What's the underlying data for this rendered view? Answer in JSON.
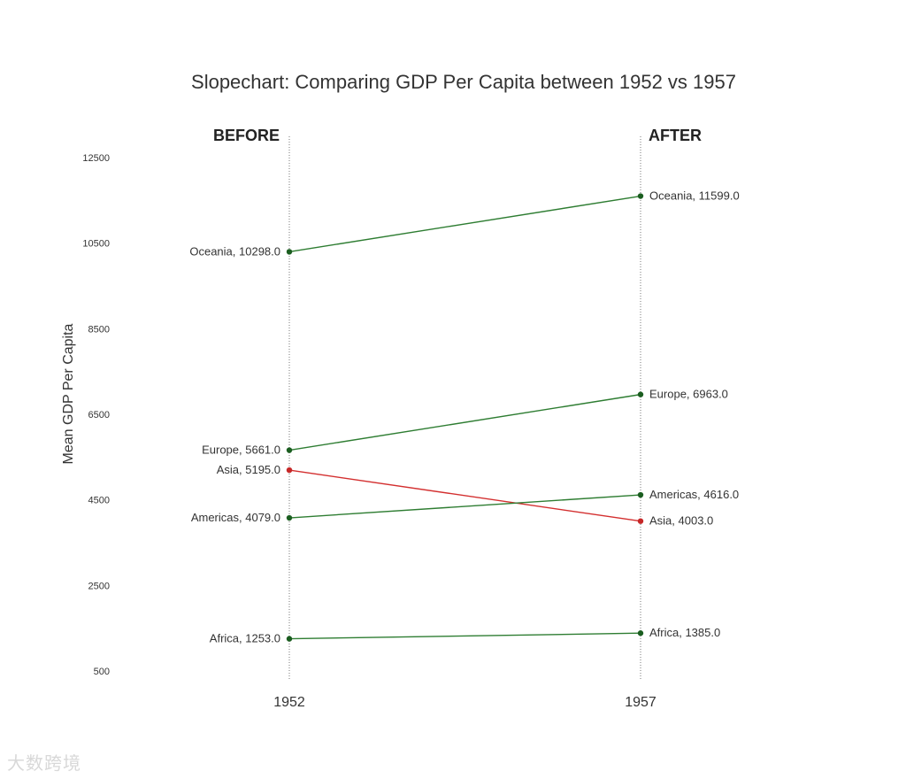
{
  "chart_data": {
    "type": "line",
    "title": "Slopechart: Comparing GDP Per Capita between 1952 vs 1957",
    "ylabel": "Mean GDP Per Capita",
    "left_header": "BEFORE",
    "right_header": "AFTER",
    "x": [
      "1952",
      "1957"
    ],
    "ylim": [
      500,
      12500
    ],
    "yticks": [
      500,
      2500,
      4500,
      6500,
      8500,
      10500,
      12500
    ],
    "colors": {
      "increase": "#2e7d32",
      "decrease": "#d32f2f",
      "point_increase": "#1b5e20",
      "point_decrease": "#c62828",
      "vline": "#777777"
    },
    "series": [
      {
        "name": "Oceania",
        "values": [
          10298.0,
          11599.0
        ],
        "left_label": "Oceania, 10298.0",
        "right_label": "Oceania, 11599.0"
      },
      {
        "name": "Europe",
        "values": [
          5661.0,
          6963.0
        ],
        "left_label": "Europe, 5661.0",
        "right_label": "Europe, 6963.0"
      },
      {
        "name": "Asia",
        "values": [
          5195.0,
          4003.0
        ],
        "left_label": "Asia, 5195.0",
        "right_label": "Asia, 4003.0"
      },
      {
        "name": "Americas",
        "values": [
          4079.0,
          4616.0
        ],
        "left_label": "Americas, 4079.0",
        "right_label": "Americas, 4616.0"
      },
      {
        "name": "Africa",
        "values": [
          1253.0,
          1385.0
        ],
        "left_label": "Africa, 1253.0",
        "right_label": "Africa, 1385.0"
      }
    ]
  },
  "watermark": "大数跨境"
}
